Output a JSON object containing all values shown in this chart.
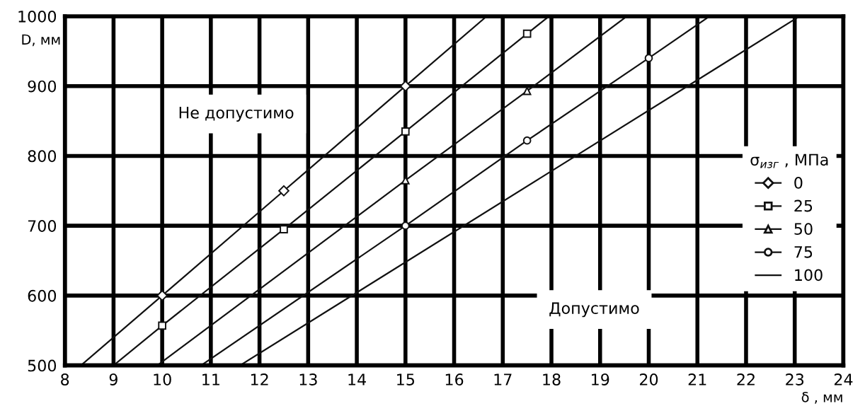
{
  "chart_data": {
    "type": "line",
    "xlabel": "δ , мм",
    "ylabel": "D, мм",
    "legend_title": "σ$_{изг}$ , МПа",
    "xlim": [
      8,
      24
    ],
    "ylim": [
      500,
      1000
    ],
    "xticks": [
      8,
      9,
      10,
      11,
      12,
      13,
      14,
      15,
      16,
      17,
      18,
      19,
      20,
      21,
      22,
      23,
      24
    ],
    "yticks": [
      500,
      600,
      700,
      800,
      900,
      1000
    ],
    "grid": true,
    "legend": "right",
    "line_style": "solid",
    "annotations": [
      "Не допустимо",
      "Допустимо"
    ],
    "series": [
      {
        "name": "0",
        "color": "#111111",
        "marker": "diamond",
        "x": [
          8.33,
          10,
          12.5,
          15,
          16.67
        ],
        "values": [
          500,
          600,
          750,
          900,
          1000
        ]
      },
      {
        "name": "25",
        "color": "#111111",
        "marker": "square",
        "x": [
          9.0,
          10,
          12.5,
          15,
          17.5,
          17.95
        ],
        "values": [
          500,
          557,
          695,
          835,
          975,
          1000
        ]
      },
      {
        "name": "50",
        "color": "#111111",
        "marker": "triangle",
        "x": [
          9.9,
          15,
          17.5,
          19.55
        ],
        "values": [
          500,
          765,
          893,
          1000
        ]
      },
      {
        "name": "75",
        "color": "#111111",
        "marker": "circle",
        "x": [
          10.8,
          15,
          17.5,
          20,
          21.25
        ],
        "values": [
          500,
          700,
          822,
          940,
          1000
        ]
      },
      {
        "name": "100",
        "color": "#111111",
        "marker": "none",
        "x": [
          11.6,
          23.1
        ],
        "values": [
          500,
          1000
        ]
      }
    ]
  }
}
